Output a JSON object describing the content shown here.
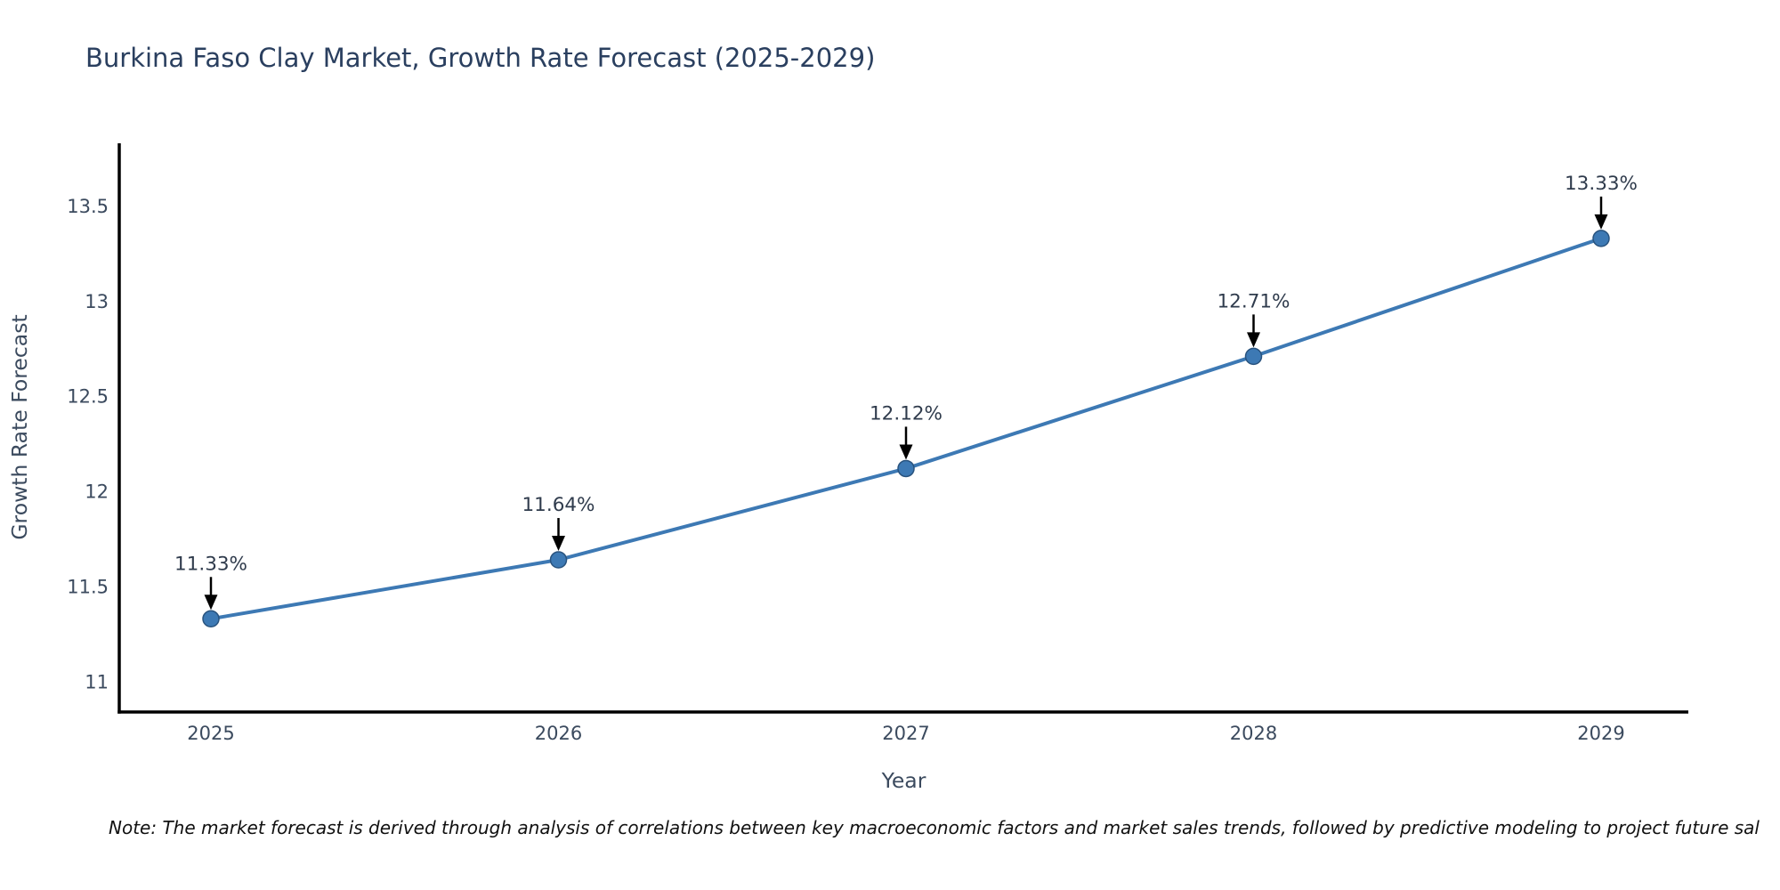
{
  "title": "Burkina Faso Clay Market, Growth Rate Forecast (2025-2029)",
  "note": "Note: The market forecast is derived through analysis of correlations between key macroeconomic factors and market sales trends, followed by predictive modeling to project future sal",
  "colors": {
    "title_text": "#2a3f5f",
    "axis_text": "#3b4a5e",
    "line": "#3d79b4",
    "marker_fill": "#3d79b4",
    "marker_edge": "#29537e",
    "axis_line": "#000000",
    "annotation_text": "#2f3b4c",
    "arrow": "#000000",
    "background": "#ffffff"
  },
  "chart_data": {
    "type": "line",
    "title": "Burkina Faso Clay Market, Growth Rate Forecast (2025-2029)",
    "xlabel": "Year",
    "ylabel": "Growth Rate Forecast",
    "x": [
      2025,
      2026,
      2027,
      2028,
      2029
    ],
    "values": [
      11.33,
      11.64,
      12.12,
      12.71,
      13.33
    ],
    "point_labels": [
      "11.33%",
      "11.64%",
      "12.12%",
      "12.71%",
      "13.33%"
    ],
    "xticks": [
      "2025",
      "2026",
      "2027",
      "2028",
      "2029"
    ],
    "yticks": [
      11,
      11.5,
      12,
      12.5,
      13,
      13.5
    ],
    "ylim": [
      10.84,
      13.83
    ],
    "grid": false,
    "legend_position": "none",
    "markers": true,
    "annotation_style": "value labels with downward arrows above each data point"
  }
}
